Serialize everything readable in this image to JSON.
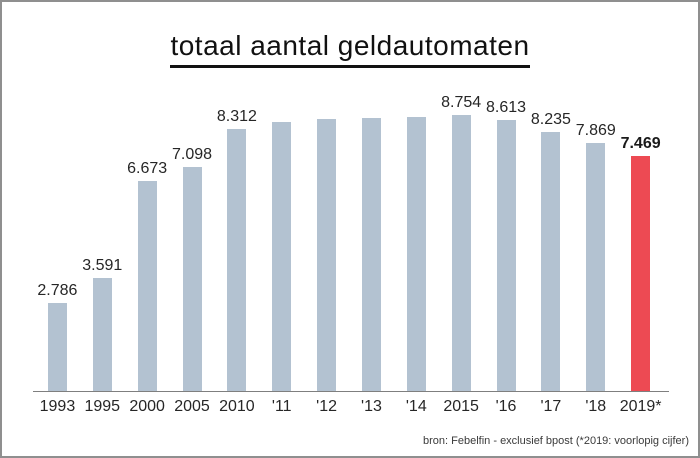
{
  "window": {
    "background": "#ffffff",
    "border_color": "#8f8f8f"
  },
  "title": "totaal aantal geldautomaten",
  "source_note": "bron: Febelfin - exclusief bpost (*2019: voorlopig cijfer)",
  "colors": {
    "bar": "#b3c2d1",
    "bar_highlight": "#ed4a53",
    "axis": "#7f7f7f",
    "text": "#262626",
    "title_text": "#111111"
  },
  "chart_data": {
    "type": "bar",
    "title": "totaal aantal geldautomaten",
    "categories": [
      "1993",
      "1995",
      "2000",
      "2005",
      "2010",
      "'11",
      "'12",
      "'13",
      "'14",
      "2015",
      "'16",
      "'17",
      "'18",
      "2019*"
    ],
    "values": [
      2786,
      3591,
      6673,
      7098,
      8312,
      8550,
      8630,
      8660,
      8710,
      8754,
      8613,
      8235,
      7869,
      7469
    ],
    "value_labels": [
      "2.786",
      "3.591",
      "6.673",
      "7.098",
      "8.312",
      "",
      "",
      "",
      "",
      "8.754",
      "8.613",
      "8.235",
      "7.869",
      "7.469"
    ],
    "highlight_index": 13,
    "estimated_unlabeled_indices": [
      5,
      6,
      7,
      8
    ],
    "xlabel": "",
    "ylabel": "",
    "ylim": [
      0,
      9000
    ],
    "grid": false,
    "legend": false,
    "annotation": "bron: Febelfin - exclusief bpost (*2019: voorlopig cijfer)"
  }
}
